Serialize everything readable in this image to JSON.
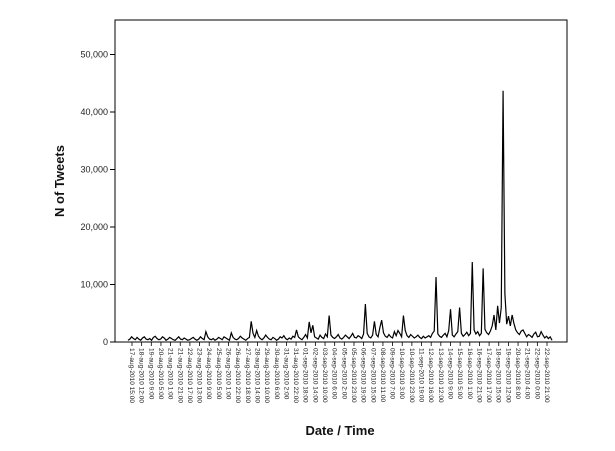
{
  "chart_data": {
    "type": "line",
    "xlabel": "Date / Time",
    "ylabel": "N of Tweets",
    "ylim": [
      0,
      56000
    ],
    "yticks": [
      0,
      10000,
      20000,
      30000,
      40000,
      50000
    ],
    "ytick_labels": [
      "0",
      "10,000",
      "20,000",
      "30,000",
      "40,000",
      "50,000"
    ],
    "grid": false,
    "x_tick_labels": [
      "17-aug-2010 15:00",
      "18-aug-2010 12:00",
      "19-aug-2010 9:00",
      "20-aug-2010 5:00",
      "21-aug-2010 1:00",
      "21-aug-2010 21:00",
      "22-aug-2010 17:00",
      "23-aug-2010 13:00",
      "24-aug-2010 9:00",
      "25-aug-2010 5:00",
      "26-aug-2010 1:00",
      "26-aug-2010 22:00",
      "27-aug-2010 18:00",
      "28-aug-2010 14:00",
      "29-aug-2010 10:00",
      "30-aug-2010 6:00",
      "31-aug-2010 2:00",
      "31-aug-2010 22:00",
      "01-sep-2010 18:00",
      "02-sep-2010 14:00",
      "03-sep-2010 10:00",
      "04-sep-2010 6:00",
      "05-sep-2010 2:00",
      "05-sep-2010 23:00",
      "06-sep-2010 19:00",
      "07-sep-2010 15:00",
      "08-sep-2010 11:00",
      "09-sep-2010 7:00",
      "10-sep-2010 3:00",
      "10-sep-2010 23:00",
      "11-sep-2010 19:00",
      "12-sep-2010 16:00",
      "13-sep-2010 12:00",
      "14-sep-2010 9:00",
      "15-sep-2010 5:00",
      "16-sep-2010 1:00",
      "16-sep-2010 21:00",
      "17-sep-2010 17:00",
      "18-sep-2010 15:00",
      "19-sep-2010 12:00",
      "20-sep-2010 8:00",
      "21-sep-2010 4:00",
      "22-sep-2010 0:00",
      "22-sep-2010 21:00"
    ],
    "series": [
      {
        "values": [
          300,
          500,
          900,
          600,
          400,
          800,
          500,
          300,
          700,
          900,
          500,
          400,
          600,
          300,
          800,
          1000,
          600,
          400,
          500,
          900,
          700,
          300,
          500,
          800,
          600,
          400,
          300,
          600,
          900,
          500,
          400,
          700,
          500,
          300,
          400,
          600,
          800,
          500,
          300,
          500,
          900,
          600,
          400,
          1800,
          900,
          500,
          400,
          600,
          300,
          500,
          800,
          600,
          400,
          900,
          700,
          500,
          300,
          1600,
          800,
          500,
          400,
          600,
          1000,
          700,
          500,
          300,
          600,
          800,
          3600,
          1500,
          800,
          2000,
          1000,
          600,
          400,
          700,
          1200,
          800,
          500,
          400,
          800,
          600,
          300,
          500,
          900,
          700,
          1100,
          600,
          400,
          700,
          500,
          1000,
          800,
          2100,
          900,
          600,
          400,
          800,
          1300,
          700,
          3500,
          1600,
          2900,
          900,
          700,
          500,
          1200,
          800,
          600,
          1400,
          900,
          4600,
          1200,
          800,
          600,
          900,
          1300,
          700,
          500,
          800,
          1200,
          900,
          600,
          1000,
          1500,
          800,
          700,
          1100,
          900,
          600,
          1400,
          6600,
          1500,
          900,
          700,
          1200,
          3600,
          1300,
          900,
          2500,
          3800,
          1600,
          1000,
          800,
          1300,
          900,
          700,
          1800,
          1100,
          2000,
          1500,
          900,
          4600,
          2000,
          1100,
          800,
          1300,
          1000,
          700,
          900,
          1200,
          800,
          600,
          1000,
          700,
          900,
          1100,
          800,
          1500,
          1900,
          11300,
          1400,
          1000,
          800,
          1200,
          1500,
          900,
          2000,
          5700,
          1200,
          900,
          1400,
          1800,
          6000,
          1500,
          1000,
          1300,
          1700,
          1100,
          1500,
          13900,
          2100,
          1400,
          1800,
          1100,
          1500,
          12800,
          2200,
          1600,
          1300,
          1900,
          2800,
          4700,
          2100,
          6300,
          3300,
          6000,
          43700,
          8400,
          3100,
          4500,
          2800,
          4700,
          3200,
          2100,
          1600,
          1300,
          1900,
          2100,
          1500,
          900,
          1300,
          1100,
          800,
          1400,
          1700,
          900,
          1000,
          1800,
          1200,
          700,
          1000,
          600,
          900,
          300
        ]
      }
    ]
  }
}
